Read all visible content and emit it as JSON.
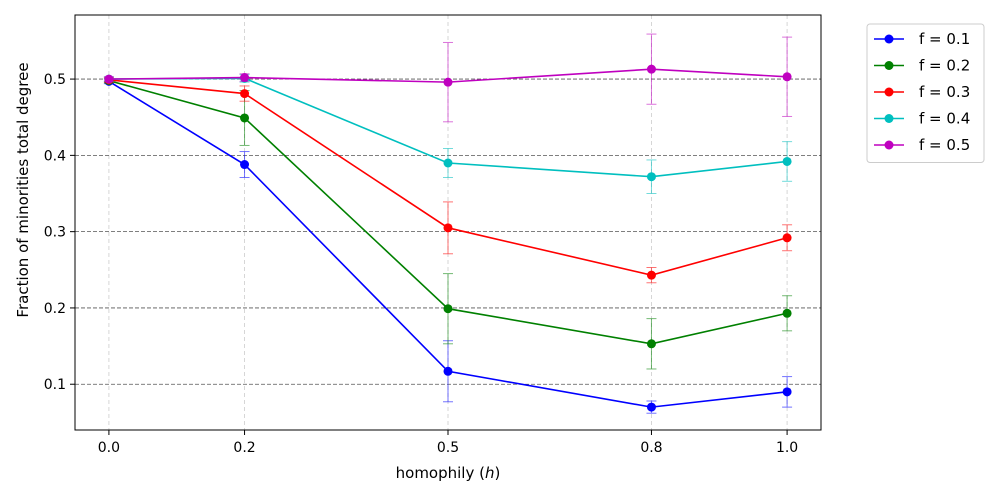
{
  "chart_data": {
    "type": "line",
    "xlabel_prefix": "homophily (",
    "xlabel_var": "h",
    "xlabel_suffix": ")",
    "ylabel": "Fraction of minorities total degree",
    "x": [
      0.0,
      0.2,
      0.5,
      0.8,
      1.0
    ],
    "x_tick_labels": [
      "0.0",
      "0.2",
      "0.5",
      "0.8",
      "1.0"
    ],
    "y_ticks": [
      0.1,
      0.2,
      0.3,
      0.4,
      0.5
    ],
    "y_tick_labels": [
      "0.1",
      "0.2",
      "0.3",
      "0.4",
      "0.5"
    ],
    "xlim": [
      -0.05,
      1.05
    ],
    "ylim": [
      0.04,
      0.584
    ],
    "grid": {
      "horizontal": "dashed",
      "vertical": "dashed-light"
    },
    "legend_position": "outside-top-right",
    "series": [
      {
        "name": "f = 0.1",
        "color": "#0000ff",
        "values": [
          0.497,
          0.388,
          0.117,
          0.07,
          0.09
        ],
        "err": [
          0.003,
          0.017,
          0.04,
          0.008,
          0.02
        ]
      },
      {
        "name": "f = 0.2",
        "color": "#008000",
        "values": [
          0.498,
          0.449,
          0.199,
          0.153,
          0.193
        ],
        "err": [
          0.003,
          0.036,
          0.046,
          0.033,
          0.023
        ]
      },
      {
        "name": "f = 0.3",
        "color": "#ff0000",
        "values": [
          0.499,
          0.481,
          0.305,
          0.243,
          0.292
        ],
        "err": [
          0.003,
          0.01,
          0.034,
          0.01,
          0.017
        ]
      },
      {
        "name": "f = 0.4",
        "color": "#00bfbf",
        "values": [
          0.5,
          0.501,
          0.39,
          0.372,
          0.392
        ],
        "err": [
          0.003,
          0.005,
          0.019,
          0.022,
          0.026
        ]
      },
      {
        "name": "f = 0.5",
        "color": "#bf00bf",
        "values": [
          0.5,
          0.502,
          0.496,
          0.513,
          0.503
        ],
        "err": [
          0.003,
          0.005,
          0.052,
          0.046,
          0.052
        ]
      }
    ]
  }
}
